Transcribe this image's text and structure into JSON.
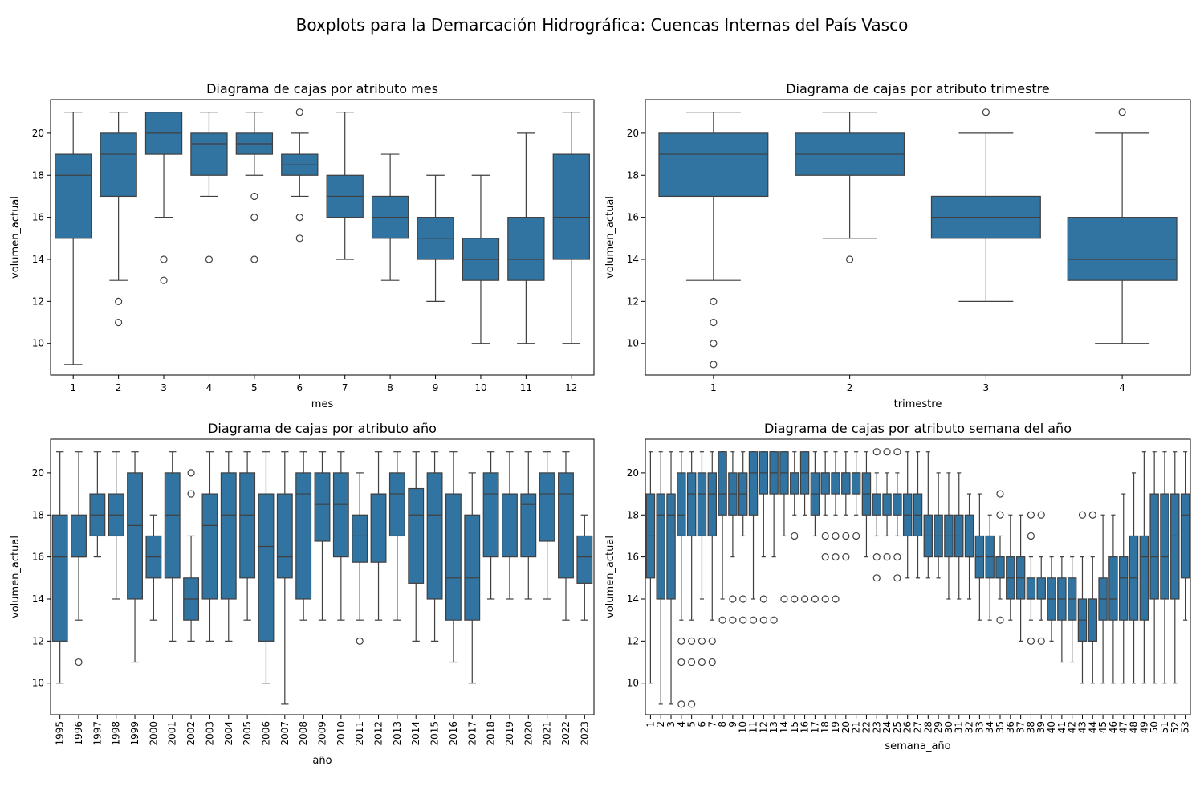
{
  "figure": {
    "suptitle": "Boxplots para la Demarcación Hidrográfica: Cuencas Internas del País Vasco",
    "box_color": "#3274a1",
    "line_color": "#3f3f3f"
  },
  "chart_data": [
    {
      "type": "box",
      "title": "Diagrama de cajas por atributo mes",
      "xlabel": "mes",
      "ylabel": "volumen_actual",
      "ylim": [
        8.5,
        21.6
      ],
      "yticks": [
        10,
        12,
        14,
        16,
        18,
        20
      ],
      "categories": [
        "1",
        "2",
        "3",
        "4",
        "5",
        "6",
        "7",
        "8",
        "9",
        "10",
        "11",
        "12"
      ],
      "boxes": [
        {
          "whislo": 9,
          "q1": 15,
          "med": 18,
          "q3": 19,
          "whishi": 21,
          "fliers": []
        },
        {
          "whislo": 13,
          "q1": 17,
          "med": 19,
          "q3": 20,
          "whishi": 21,
          "fliers": [
            12,
            11
          ]
        },
        {
          "whislo": 16,
          "q1": 19,
          "med": 20,
          "q3": 21,
          "whishi": 21,
          "fliers": [
            14,
            13
          ]
        },
        {
          "whislo": 17,
          "q1": 18,
          "med": 19.5,
          "q3": 20,
          "whishi": 21,
          "fliers": [
            14
          ]
        },
        {
          "whislo": 18,
          "q1": 19,
          "med": 19.5,
          "q3": 20,
          "whishi": 21,
          "fliers": [
            17,
            16,
            14
          ]
        },
        {
          "whislo": 17,
          "q1": 18,
          "med": 18.5,
          "q3": 19,
          "whishi": 20,
          "fliers": [
            21,
            16,
            15
          ]
        },
        {
          "whislo": 14,
          "q1": 16,
          "med": 17,
          "q3": 18,
          "whishi": 21,
          "fliers": []
        },
        {
          "whislo": 13,
          "q1": 15,
          "med": 16,
          "q3": 17,
          "whishi": 19,
          "fliers": []
        },
        {
          "whislo": 12,
          "q1": 14,
          "med": 15,
          "q3": 16,
          "whishi": 18,
          "fliers": []
        },
        {
          "whislo": 10,
          "q1": 13,
          "med": 14,
          "q3": 15,
          "whishi": 18,
          "fliers": []
        },
        {
          "whislo": 10,
          "q1": 13,
          "med": 14,
          "q3": 16,
          "whishi": 20,
          "fliers": []
        },
        {
          "whislo": 10,
          "q1": 14,
          "med": 16,
          "q3": 19,
          "whishi": 21,
          "fliers": []
        }
      ]
    },
    {
      "type": "box",
      "title": "Diagrama de cajas por atributo trimestre",
      "xlabel": "trimestre",
      "ylabel": "volumen_actual",
      "ylim": [
        8.5,
        21.6
      ],
      "yticks": [
        10,
        12,
        14,
        16,
        18,
        20
      ],
      "categories": [
        "1",
        "2",
        "3",
        "4"
      ],
      "boxes": [
        {
          "whislo": 13,
          "q1": 17,
          "med": 19,
          "q3": 20,
          "whishi": 21,
          "fliers": [
            12,
            11,
            10,
            9
          ]
        },
        {
          "whislo": 15,
          "q1": 18,
          "med": 19,
          "q3": 20,
          "whishi": 21,
          "fliers": [
            14
          ]
        },
        {
          "whislo": 12,
          "q1": 15,
          "med": 16,
          "q3": 17,
          "whishi": 20,
          "fliers": [
            21
          ]
        },
        {
          "whislo": 10,
          "q1": 13,
          "med": 14,
          "q3": 16,
          "whishi": 20,
          "fliers": [
            21
          ]
        }
      ]
    },
    {
      "type": "box",
      "title": "Diagrama de cajas por atributo año",
      "xlabel": "año",
      "ylabel": "volumen_actual",
      "ylim": [
        8.5,
        21.6
      ],
      "yticks": [
        10,
        12,
        14,
        16,
        18,
        20
      ],
      "categories": [
        "1995",
        "1996",
        "1997",
        "1998",
        "1999",
        "2000",
        "2001",
        "2002",
        "2003",
        "2004",
        "2005",
        "2006",
        "2007",
        "2008",
        "2009",
        "2010",
        "2011",
        "2012",
        "2013",
        "2014",
        "2015",
        "2016",
        "2017",
        "2018",
        "2019",
        "2020",
        "2021",
        "2022",
        "2023"
      ],
      "boxes": [
        {
          "whislo": 10,
          "q1": 12,
          "med": 16,
          "q3": 18,
          "whishi": 21,
          "fliers": []
        },
        {
          "whislo": 13,
          "q1": 16,
          "med": 16,
          "q3": 18,
          "whishi": 21,
          "fliers": [
            11
          ]
        },
        {
          "whislo": 16,
          "q1": 17,
          "med": 18,
          "q3": 19,
          "whishi": 21,
          "fliers": []
        },
        {
          "whislo": 14,
          "q1": 17,
          "med": 18,
          "q3": 19,
          "whishi": 21,
          "fliers": []
        },
        {
          "whislo": 11,
          "q1": 14,
          "med": 17.5,
          "q3": 20,
          "whishi": 21,
          "fliers": []
        },
        {
          "whislo": 13,
          "q1": 15,
          "med": 16,
          "q3": 17,
          "whishi": 18,
          "fliers": []
        },
        {
          "whislo": 12,
          "q1": 15,
          "med": 18,
          "q3": 20,
          "whishi": 21,
          "fliers": []
        },
        {
          "whislo": 12,
          "q1": 13,
          "med": 14,
          "q3": 15,
          "whishi": 17,
          "fliers": [
            20,
            19
          ]
        },
        {
          "whislo": 12,
          "q1": 14,
          "med": 17.5,
          "q3": 19,
          "whishi": 21,
          "fliers": []
        },
        {
          "whislo": 12,
          "q1": 14,
          "med": 18,
          "q3": 20,
          "whishi": 21,
          "fliers": []
        },
        {
          "whislo": 13,
          "q1": 15,
          "med": 18,
          "q3": 20,
          "whishi": 21,
          "fliers": []
        },
        {
          "whislo": 10,
          "q1": 12,
          "med": 16.5,
          "q3": 19,
          "whishi": 21,
          "fliers": []
        },
        {
          "whislo": 9,
          "q1": 15,
          "med": 16,
          "q3": 19,
          "whishi": 21,
          "fliers": []
        },
        {
          "whislo": 13,
          "q1": 14,
          "med": 19,
          "q3": 20,
          "whishi": 21,
          "fliers": []
        },
        {
          "whislo": 13,
          "q1": 16.75,
          "med": 18.5,
          "q3": 20,
          "whishi": 21,
          "fliers": []
        },
        {
          "whislo": 13,
          "q1": 16,
          "med": 18.5,
          "q3": 20,
          "whishi": 21,
          "fliers": []
        },
        {
          "whislo": 13,
          "q1": 15.75,
          "med": 17,
          "q3": 18,
          "whishi": 20,
          "fliers": [
            12
          ]
        },
        {
          "whislo": 13,
          "q1": 15.75,
          "med": 19,
          "q3": 19,
          "whishi": 21,
          "fliers": []
        },
        {
          "whislo": 13,
          "q1": 17,
          "med": 19,
          "q3": 20,
          "whishi": 21,
          "fliers": []
        },
        {
          "whislo": 12,
          "q1": 14.75,
          "med": 18,
          "q3": 19.25,
          "whishi": 21,
          "fliers": []
        },
        {
          "whislo": 12,
          "q1": 14,
          "med": 18,
          "q3": 20,
          "whishi": 21,
          "fliers": []
        },
        {
          "whislo": 11,
          "q1": 13,
          "med": 15,
          "q3": 19,
          "whishi": 21,
          "fliers": []
        },
        {
          "whislo": 10,
          "q1": 13,
          "med": 15,
          "q3": 18,
          "whishi": 20,
          "fliers": []
        },
        {
          "whislo": 14,
          "q1": 16,
          "med": 19,
          "q3": 20,
          "whishi": 21,
          "fliers": []
        },
        {
          "whislo": 14,
          "q1": 16,
          "med": 19,
          "q3": 19,
          "whishi": 21,
          "fliers": []
        },
        {
          "whislo": 14,
          "q1": 16,
          "med": 18.5,
          "q3": 19,
          "whishi": 21,
          "fliers": []
        },
        {
          "whislo": 14,
          "q1": 16.75,
          "med": 19,
          "q3": 20,
          "whishi": 21,
          "fliers": []
        },
        {
          "whislo": 13,
          "q1": 15,
          "med": 19,
          "q3": 20,
          "whishi": 21,
          "fliers": []
        },
        {
          "whislo": 13,
          "q1": 14.75,
          "med": 16,
          "q3": 17,
          "whishi": 18,
          "fliers": []
        }
      ]
    },
    {
      "type": "box",
      "title": "Diagrama de cajas por atributo semana del año",
      "xlabel": "semana_año",
      "ylabel": "volumen_actual",
      "ylim": [
        8.5,
        21.6
      ],
      "yticks": [
        10,
        12,
        14,
        16,
        18,
        20
      ],
      "categories": [
        "1",
        "2",
        "3",
        "4",
        "5",
        "6",
        "7",
        "8",
        "9",
        "10",
        "11",
        "12",
        "13",
        "14",
        "15",
        "16",
        "17",
        "18",
        "19",
        "20",
        "21",
        "22",
        "23",
        "24",
        "25",
        "26",
        "27",
        "28",
        "29",
        "30",
        "31",
        "32",
        "33",
        "34",
        "35",
        "36",
        "37",
        "38",
        "39",
        "40",
        "41",
        "42",
        "43",
        "44",
        "45",
        "46",
        "47",
        "48",
        "49",
        "50",
        "51",
        "52",
        "53"
      ],
      "boxes": [
        {
          "whislo": 10,
          "q1": 15,
          "med": 17,
          "q3": 19,
          "whishi": 21,
          "fliers": []
        },
        {
          "whislo": 9,
          "q1": 14,
          "med": 18,
          "q3": 19,
          "whishi": 21,
          "fliers": []
        },
        {
          "whislo": 9,
          "q1": 14,
          "med": 18,
          "q3": 19,
          "whishi": 21,
          "fliers": []
        },
        {
          "whislo": 13,
          "q1": 17,
          "med": 18,
          "q3": 20,
          "whishi": 21,
          "fliers": [
            12,
            11,
            9
          ]
        },
        {
          "whislo": 13,
          "q1": 17,
          "med": 19,
          "q3": 20,
          "whishi": 21,
          "fliers": [
            12,
            11,
            9
          ]
        },
        {
          "whislo": 14,
          "q1": 17,
          "med": 19,
          "q3": 20,
          "whishi": 21,
          "fliers": [
            12,
            11
          ]
        },
        {
          "whislo": 13,
          "q1": 17,
          "med": 19,
          "q3": 20,
          "whishi": 21,
          "fliers": [
            12,
            11
          ]
        },
        {
          "whislo": 14,
          "q1": 18,
          "med": 19,
          "q3": 21,
          "whishi": 21,
          "fliers": [
            13
          ]
        },
        {
          "whislo": 16,
          "q1": 18,
          "med": 19,
          "q3": 20,
          "whishi": 21,
          "fliers": [
            14,
            13
          ]
        },
        {
          "whislo": 17,
          "q1": 18,
          "med": 19,
          "q3": 20,
          "whishi": 21,
          "fliers": [
            14,
            13
          ]
        },
        {
          "whislo": 14,
          "q1": 18,
          "med": 20,
          "q3": 21,
          "whishi": 21,
          "fliers": [
            13
          ]
        },
        {
          "whislo": 16,
          "q1": 19,
          "med": 20,
          "q3": 21,
          "whishi": 21,
          "fliers": [
            14,
            13
          ]
        },
        {
          "whislo": 16,
          "q1": 19,
          "med": 20,
          "q3": 21,
          "whishi": 21,
          "fliers": [
            13
          ]
        },
        {
          "whislo": 17,
          "q1": 19,
          "med": 20,
          "q3": 21,
          "whishi": 21,
          "fliers": [
            14
          ]
        },
        {
          "whislo": 18,
          "q1": 19,
          "med": 20,
          "q3": 20,
          "whishi": 21,
          "fliers": [
            17,
            14
          ]
        },
        {
          "whislo": 18,
          "q1": 19,
          "med": 20,
          "q3": 21,
          "whishi": 21,
          "fliers": [
            14
          ]
        },
        {
          "whislo": 17,
          "q1": 18,
          "med": 19,
          "q3": 20,
          "whishi": 21,
          "fliers": [
            14
          ]
        },
        {
          "whislo": 18,
          "q1": 19,
          "med": 20,
          "q3": 20,
          "whishi": 21,
          "fliers": [
            17,
            16,
            14
          ]
        },
        {
          "whislo": 18,
          "q1": 19,
          "med": 20,
          "q3": 20,
          "whishi": 21,
          "fliers": [
            17,
            16,
            14
          ]
        },
        {
          "whislo": 18,
          "q1": 19,
          "med": 20,
          "q3": 20,
          "whishi": 21,
          "fliers": [
            17,
            16
          ]
        },
        {
          "whislo": 18,
          "q1": 19,
          "med": 20,
          "q3": 20,
          "whishi": 21,
          "fliers": [
            17
          ]
        },
        {
          "whislo": 16,
          "q1": 18,
          "med": 19,
          "q3": 20,
          "whishi": 21,
          "fliers": []
        },
        {
          "whislo": 17,
          "q1": 18,
          "med": 19,
          "q3": 19,
          "whishi": 20,
          "fliers": [
            21,
            16,
            15
          ]
        },
        {
          "whislo": 17,
          "q1": 18,
          "med": 19,
          "q3": 19,
          "whishi": 20,
          "fliers": [
            21,
            16
          ]
        },
        {
          "whislo": 17,
          "q1": 18,
          "med": 19,
          "q3": 19,
          "whishi": 20,
          "fliers": [
            21,
            16,
            15
          ]
        },
        {
          "whislo": 15,
          "q1": 17,
          "med": 18,
          "q3": 19,
          "whishi": 21,
          "fliers": []
        },
        {
          "whislo": 15,
          "q1": 17,
          "med": 18,
          "q3": 19,
          "whishi": 21,
          "fliers": []
        },
        {
          "whislo": 15,
          "q1": 16,
          "med": 17,
          "q3": 18,
          "whishi": 21,
          "fliers": []
        },
        {
          "whislo": 15,
          "q1": 16,
          "med": 17,
          "q3": 18,
          "whishi": 20,
          "fliers": []
        },
        {
          "whislo": 14,
          "q1": 16,
          "med": 17,
          "q3": 18,
          "whishi": 20,
          "fliers": []
        },
        {
          "whislo": 14,
          "q1": 16,
          "med": 17,
          "q3": 18,
          "whishi": 20,
          "fliers": []
        },
        {
          "whislo": 14,
          "q1": 16,
          "med": 16,
          "q3": 18,
          "whishi": 19,
          "fliers": []
        },
        {
          "whislo": 13,
          "q1": 15,
          "med": 16,
          "q3": 17,
          "whishi": 19,
          "fliers": []
        },
        {
          "whislo": 13,
          "q1": 15,
          "med": 16,
          "q3": 17,
          "whishi": 18,
          "fliers": []
        },
        {
          "whislo": 14,
          "q1": 15,
          "med": 15,
          "q3": 16,
          "whishi": 17,
          "fliers": [
            19,
            18,
            13
          ]
        },
        {
          "whislo": 13,
          "q1": 14,
          "med": 15,
          "q3": 16,
          "whishi": 18,
          "fliers": []
        },
        {
          "whislo": 12,
          "q1": 14,
          "med": 15,
          "q3": 16,
          "whishi": 18,
          "fliers": []
        },
        {
          "whislo": 13,
          "q1": 14,
          "med": 14,
          "q3": 15,
          "whishi": 16,
          "fliers": [
            18,
            17,
            12
          ]
        },
        {
          "whislo": 13,
          "q1": 14,
          "med": 14,
          "q3": 15,
          "whishi": 16,
          "fliers": [
            18,
            12
          ]
        },
        {
          "whislo": 12,
          "q1": 13,
          "med": 14,
          "q3": 15,
          "whishi": 16,
          "fliers": []
        },
        {
          "whislo": 11,
          "q1": 13,
          "med": 14,
          "q3": 15,
          "whishi": 16,
          "fliers": []
        },
        {
          "whislo": 11,
          "q1": 13,
          "med": 14,
          "q3": 15,
          "whishi": 16,
          "fliers": []
        },
        {
          "whislo": 10,
          "q1": 12,
          "med": 13,
          "q3": 14,
          "whishi": 16,
          "fliers": [
            18
          ]
        },
        {
          "whislo": 10,
          "q1": 12,
          "med": 14,
          "q3": 14,
          "whishi": 16,
          "fliers": [
            18
          ]
        },
        {
          "whislo": 10,
          "q1": 13,
          "med": 14,
          "q3": 15,
          "whishi": 18,
          "fliers": []
        },
        {
          "whislo": 10,
          "q1": 13,
          "med": 14,
          "q3": 16,
          "whishi": 18,
          "fliers": []
        },
        {
          "whislo": 10,
          "q1": 13,
          "med": 15,
          "q3": 16,
          "whishi": 19,
          "fliers": []
        },
        {
          "whislo": 10,
          "q1": 13,
          "med": 15,
          "q3": 17,
          "whishi": 20,
          "fliers": []
        },
        {
          "whislo": 10,
          "q1": 13,
          "med": 16,
          "q3": 17,
          "whishi": 21,
          "fliers": []
        },
        {
          "whislo": 10,
          "q1": 14,
          "med": 16,
          "q3": 19,
          "whishi": 21,
          "fliers": []
        },
        {
          "whislo": 10,
          "q1": 14,
          "med": 16,
          "q3": 19,
          "whishi": 21,
          "fliers": []
        },
        {
          "whislo": 10,
          "q1": 14,
          "med": 17,
          "q3": 19,
          "whishi": 21,
          "fliers": []
        },
        {
          "whislo": 13,
          "q1": 15,
          "med": 18,
          "q3": 19,
          "whishi": 21,
          "fliers": []
        }
      ]
    }
  ]
}
